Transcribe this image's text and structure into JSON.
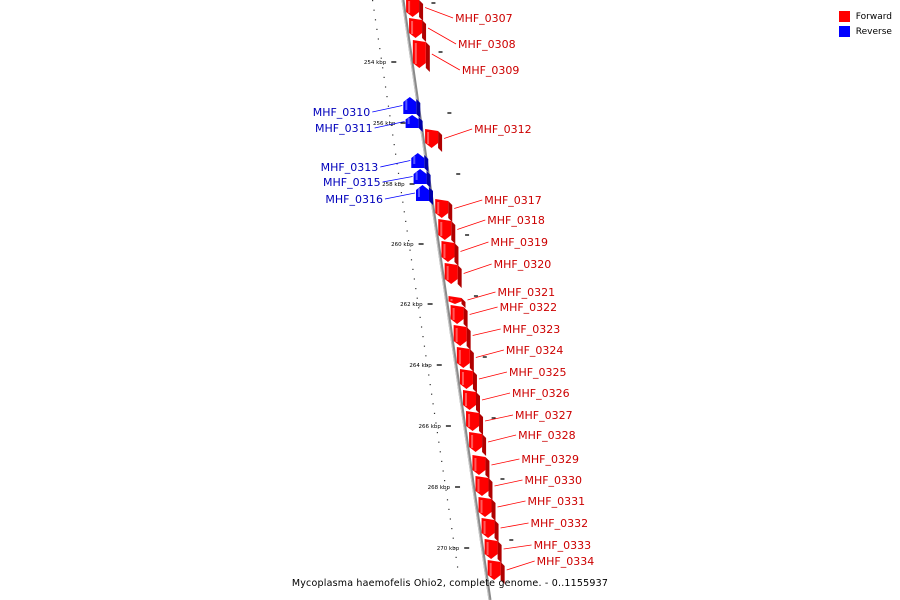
{
  "legend": {
    "forward_label": "Forward",
    "reverse_label": "Reverse",
    "forward_color": "#ff0000",
    "reverse_color": "#0000ff"
  },
  "caption": "Mycoplasma haemofelis Ohio2, complete genome. - 0..1155937",
  "ticks": [
    "254 kbp",
    "256 kbp",
    "258 kbp",
    "260 kbp",
    "262 kbp",
    "264 kbp",
    "266 kbp",
    "268 kbp",
    "270 kbp"
  ],
  "genes": [
    {
      "name": "MHF_0307",
      "strand": "forward"
    },
    {
      "name": "MHF_0308",
      "strand": "forward"
    },
    {
      "name": "MHF_0309",
      "strand": "forward"
    },
    {
      "name": "MHF_0310",
      "strand": "reverse"
    },
    {
      "name": "MHF_0311",
      "strand": "reverse"
    },
    {
      "name": "MHF_0312",
      "strand": "forward"
    },
    {
      "name": "MHF_0313",
      "strand": "reverse"
    },
    {
      "name": "MHF_0315",
      "strand": "reverse"
    },
    {
      "name": "MHF_0316",
      "strand": "reverse"
    },
    {
      "name": "MHF_0317",
      "strand": "forward"
    },
    {
      "name": "MHF_0318",
      "strand": "forward"
    },
    {
      "name": "MHF_0319",
      "strand": "forward"
    },
    {
      "name": "MHF_0320",
      "strand": "forward"
    },
    {
      "name": "MHF_0321",
      "strand": "forward"
    },
    {
      "name": "MHF_0322",
      "strand": "forward"
    },
    {
      "name": "MHF_0323",
      "strand": "forward"
    },
    {
      "name": "MHF_0324",
      "strand": "forward"
    },
    {
      "name": "MHF_0325",
      "strand": "forward"
    },
    {
      "name": "MHF_0326",
      "strand": "forward"
    },
    {
      "name": "MHF_0327",
      "strand": "forward"
    },
    {
      "name": "MHF_0328",
      "strand": "forward"
    },
    {
      "name": "MHF_0329",
      "strand": "forward"
    },
    {
      "name": "MHF_0330",
      "strand": "forward"
    },
    {
      "name": "MHF_0331",
      "strand": "forward"
    },
    {
      "name": "MHF_0332",
      "strand": "forward"
    },
    {
      "name": "MHF_0333",
      "strand": "forward"
    },
    {
      "name": "MHF_0334",
      "strand": "forward"
    }
  ]
}
